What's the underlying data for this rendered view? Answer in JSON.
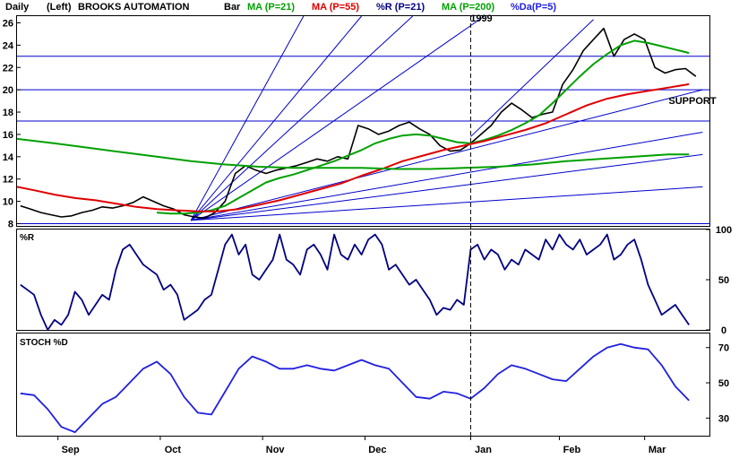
{
  "header": {
    "period": "Daily",
    "scale": "(Left)",
    "symbol": "BROOKS AUTOMATION",
    "legend": [
      {
        "label": "Bar",
        "color": "#000000"
      },
      {
        "label": "MA (P=21)",
        "color": "#00a000"
      },
      {
        "label": "MA (P=55)",
        "color": "#e00000"
      },
      {
        "label": "%R (P=21)",
        "color": "#000080"
      },
      {
        "label": "MA (P=200)",
        "color": "#00a000"
      },
      {
        "label": "%Da(P=5)",
        "color": "#2020e0"
      }
    ]
  },
  "chart_data": [
    {
      "type": "line",
      "panel": "price",
      "ylim": [
        7.8,
        26.6
      ],
      "y_ticks": [
        8,
        10,
        12,
        14,
        16,
        18,
        20,
        22,
        24,
        26
      ],
      "x_ticks": [
        {
          "label": "Sep",
          "x": 1
        },
        {
          "label": "Oct",
          "x": 31
        },
        {
          "label": "Nov",
          "x": 61
        },
        {
          "label": "Dec",
          "x": 91
        },
        {
          "label": "Jan",
          "x": 122
        },
        {
          "label": "Feb",
          "x": 148
        },
        {
          "label": "Mar",
          "x": 173
        }
      ],
      "x_range": [
        -11,
        192
      ],
      "year_marker": {
        "label": "1999",
        "x": 122
      },
      "annotation": {
        "label": "SUPPORT",
        "x": 187,
        "y": 19.6
      },
      "series": [
        {
          "name": "Bar",
          "color": "#000000",
          "x": [
            -10,
            -7,
            -4,
            -1,
            2,
            5,
            8,
            11,
            14,
            17,
            20,
            23,
            26,
            29,
            32,
            35,
            38,
            41,
            44,
            47,
            50,
            53,
            56,
            59,
            62,
            65,
            68,
            71,
            74,
            77,
            80,
            83,
            86,
            89,
            92,
            95,
            98,
            101,
            104,
            107,
            110,
            113,
            116,
            119,
            122,
            125,
            128,
            131,
            134,
            137,
            140,
            143,
            146,
            149,
            152,
            155,
            158,
            161,
            164,
            167,
            170,
            173,
            176,
            179,
            182,
            185,
            188
          ],
          "y": [
            9.6,
            9.3,
            9.0,
            8.8,
            8.6,
            8.7,
            9.0,
            9.2,
            9.5,
            9.4,
            9.6,
            9.9,
            10.4,
            10.0,
            9.6,
            9.3,
            8.8,
            8.6,
            8.5,
            9.0,
            10.0,
            12.5,
            13.2,
            12.8,
            12.5,
            12.8,
            13.0,
            13.2,
            13.5,
            13.8,
            13.6,
            14.0,
            13.8,
            16.8,
            16.5,
            16.0,
            16.3,
            16.8,
            17.1,
            16.5,
            16.0,
            15.0,
            14.5,
            14.6,
            15.2,
            16.0,
            16.8,
            18.0,
            18.8,
            18.2,
            17.5,
            17.8,
            18.0,
            20.5,
            21.8,
            23.5,
            24.5,
            25.5,
            23.0,
            24.5,
            25.0,
            24.5,
            22.0,
            21.5,
            21.8,
            21.9,
            21.2
          ]
        },
        {
          "name": "MA (P=21)",
          "color": "#00a000",
          "x": [
            30,
            34,
            38,
            42,
            46,
            50,
            54,
            58,
            62,
            66,
            70,
            74,
            78,
            82,
            86,
            90,
            94,
            98,
            102,
            106,
            110,
            114,
            118,
            122,
            126,
            130,
            134,
            138,
            142,
            146,
            150,
            154,
            158,
            162,
            166,
            170,
            174,
            178,
            182,
            186
          ],
          "y": [
            9.0,
            8.9,
            8.9,
            9.0,
            9.2,
            9.6,
            10.3,
            11.0,
            11.7,
            12.1,
            12.4,
            12.8,
            13.2,
            13.6,
            14.1,
            14.6,
            15.2,
            15.6,
            15.9,
            16.0,
            15.9,
            15.6,
            15.3,
            15.2,
            15.5,
            15.9,
            16.4,
            17.0,
            17.7,
            18.8,
            20.0,
            21.2,
            22.3,
            23.2,
            24.0,
            24.4,
            24.2,
            23.9,
            23.6,
            23.3
          ]
        },
        {
          "name": "MA (P=55)",
          "color": "#e00000",
          "x": [
            -11,
            -6,
            0,
            6,
            12,
            18,
            24,
            30,
            36,
            42,
            48,
            54,
            60,
            66,
            72,
            78,
            84,
            90,
            96,
            102,
            108,
            114,
            120,
            126,
            132,
            138,
            144,
            150,
            156,
            162,
            168,
            174,
            180,
            186
          ],
          "y": [
            11.3,
            11.0,
            10.6,
            10.3,
            10.1,
            9.8,
            9.5,
            9.3,
            9.2,
            9.1,
            9.1,
            9.3,
            9.7,
            10.1,
            10.6,
            11.1,
            11.6,
            12.3,
            12.9,
            13.6,
            14.1,
            14.6,
            15.0,
            15.4,
            15.9,
            16.4,
            17.0,
            17.8,
            18.6,
            19.2,
            19.6,
            19.9,
            20.2,
            20.5
          ]
        },
        {
          "name": "MA (P=200)",
          "color": "#00a000",
          "x": [
            -11,
            0,
            10,
            20,
            30,
            40,
            50,
            60,
            70,
            80,
            90,
            100,
            110,
            120,
            130,
            140,
            150,
            160,
            170,
            180,
            186
          ],
          "y": [
            15.6,
            15.2,
            14.8,
            14.4,
            14.0,
            13.6,
            13.3,
            13.1,
            13.0,
            13.0,
            13.0,
            12.9,
            12.9,
            13.0,
            13.1,
            13.3,
            13.6,
            13.8,
            14.0,
            14.2,
            14.2
          ]
        }
      ],
      "gann_fan": {
        "origin_x": 40,
        "origin_y": 8.3,
        "color": "#0000cc",
        "endpoints": [
          {
            "x": 73,
            "y": 26.6
          },
          {
            "x": 90,
            "y": 26.6
          },
          {
            "x": 105,
            "y": 26.6
          },
          {
            "x": 126,
            "y": 26.6
          },
          {
            "x": 190,
            "y": 20.0
          },
          {
            "x": 190,
            "y": 16.2
          },
          {
            "x": 190,
            "y": 14.2
          },
          {
            "x": 190,
            "y": 11.3
          }
        ]
      },
      "trend_line": {
        "x1": 122,
        "y1": 15.8,
        "x2": 158,
        "y2": 26.3,
        "color": "#0000cc"
      },
      "horizontal_lines": [
        23.0,
        20.0,
        17.2,
        8.0
      ]
    },
    {
      "type": "line",
      "panel": "%R",
      "label": "%R",
      "ylim": [
        0,
        100
      ],
      "y_ticks": [
        0,
        50,
        100
      ],
      "series": [
        {
          "name": "%R (P=21)",
          "color": "#000080",
          "x": [
            -10,
            -8,
            -6,
            -4,
            -2,
            0,
            2,
            4,
            6,
            8,
            10,
            12,
            14,
            16,
            18,
            20,
            22,
            24,
            26,
            28,
            30,
            32,
            34,
            36,
            38,
            40,
            42,
            44,
            46,
            48,
            50,
            52,
            54,
            56,
            58,
            60,
            62,
            64,
            66,
            68,
            70,
            72,
            74,
            76,
            78,
            80,
            82,
            84,
            86,
            88,
            90,
            92,
            94,
            96,
            98,
            100,
            102,
            104,
            106,
            108,
            110,
            112,
            114,
            116,
            118,
            120,
            122,
            124,
            126,
            128,
            130,
            132,
            134,
            136,
            138,
            140,
            142,
            144,
            146,
            148,
            150,
            152,
            154,
            156,
            158,
            160,
            162,
            164,
            166,
            168,
            170,
            172,
            174,
            176,
            178,
            180,
            182,
            184,
            186
          ],
          "y": [
            45,
            40,
            35,
            15,
            0,
            10,
            5,
            15,
            38,
            30,
            15,
            25,
            35,
            30,
            60,
            80,
            85,
            75,
            65,
            60,
            55,
            40,
            45,
            35,
            10,
            15,
            20,
            30,
            35,
            60,
            85,
            95,
            75,
            85,
            55,
            50,
            60,
            70,
            95,
            70,
            65,
            55,
            80,
            85,
            75,
            60,
            95,
            75,
            70,
            85,
            75,
            90,
            95,
            85,
            60,
            65,
            55,
            45,
            50,
            40,
            30,
            15,
            22,
            20,
            30,
            25,
            80,
            85,
            70,
            80,
            75,
            60,
            70,
            65,
            80,
            75,
            70,
            90,
            80,
            95,
            85,
            80,
            90,
            75,
            80,
            85,
            95,
            70,
            75,
            85,
            90,
            70,
            45,
            30,
            15,
            20,
            25,
            15,
            5
          ]
        }
      ]
    },
    {
      "type": "line",
      "panel": "STOCH %D",
      "label": "STOCH %D",
      "ylim": [
        20,
        78
      ],
      "y_ticks": [
        30,
        50,
        70
      ],
      "series": [
        {
          "name": "%Da(P=5)",
          "color": "#2020e0",
          "x": [
            -10,
            -6,
            -2,
            2,
            6,
            10,
            14,
            18,
            22,
            26,
            30,
            34,
            38,
            42,
            46,
            50,
            54,
            58,
            62,
            66,
            70,
            74,
            78,
            82,
            86,
            90,
            94,
            98,
            102,
            106,
            110,
            114,
            118,
            122,
            126,
            130,
            134,
            138,
            142,
            146,
            150,
            154,
            158,
            162,
            166,
            170,
            174,
            178,
            182,
            186
          ],
          "y": [
            44,
            43,
            35,
            25,
            22,
            30,
            38,
            42,
            50,
            58,
            62,
            55,
            42,
            33,
            32,
            45,
            58,
            65,
            62,
            58,
            58,
            60,
            58,
            57,
            60,
            63,
            60,
            58,
            50,
            42,
            41,
            45,
            44,
            41,
            47,
            55,
            60,
            58,
            55,
            52,
            51,
            58,
            65,
            70,
            72,
            70,
            69,
            60,
            48,
            40
          ]
        }
      ]
    }
  ]
}
